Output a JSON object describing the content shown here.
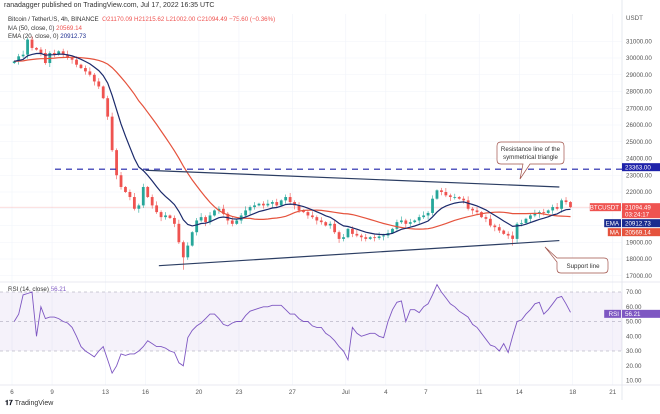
{
  "header": {
    "published": "ranadagger published on TradingView.com, Jul 17, 2022 16:35 UTC"
  },
  "legend": {
    "symbol": "Bitcoin / TetherUS, 4h, BINANCE",
    "open": "O21170.09",
    "high": "H21215.62",
    "low": "L21002.00",
    "close": "C21094.49",
    "change": "−75.60 (−0.36%)",
    "ma_label": "MA (50, close, 0)",
    "ma_value": "20569.14",
    "ema_label": "EMA (20, close, 0)",
    "ema_value": "20912.73",
    "rsi_label": "RSI (14, close)",
    "rsi_value": "56.21"
  },
  "footer": {
    "brand": "TradingView"
  },
  "colors": {
    "up": "#26a69a",
    "down": "#ef5350",
    "ema": "#1b2a6b",
    "ma": "#e5533d",
    "rsi": "#7e57c2",
    "trendline": "#2c3e63",
    "level": "#1e22aa"
  },
  "chart_data": [
    {
      "type": "candlestick",
      "symbol": "BTCUSDT",
      "unit": "USDT",
      "start": "2022-06-06",
      "closes": [
        29800,
        30100,
        30200,
        31100,
        30600,
        30500,
        30300,
        29700,
        30300,
        30200,
        30400,
        30200,
        30000,
        29900,
        29600,
        29400,
        29200,
        29000,
        28600,
        28300,
        27600,
        26500,
        24500,
        23000,
        22300,
        22000,
        21700,
        21000,
        21200,
        22300,
        21700,
        21200,
        20800,
        20500,
        20600,
        20450,
        20100,
        19000,
        18100,
        18800,
        19600,
        20300,
        20500,
        20200,
        20600,
        20900,
        21000,
        20700,
        20300,
        20100,
        20300,
        20600,
        20900,
        21100,
        21200,
        21300,
        21200,
        21300,
        21400,
        21200,
        21500,
        21700,
        21400,
        21200,
        20900,
        20800,
        20600,
        20500,
        20300,
        20200,
        20000,
        20100,
        19600,
        19200,
        19300,
        19800,
        19500,
        19400,
        19300,
        19200,
        19300,
        19250,
        19350,
        19400,
        19550,
        19800,
        20200,
        20300,
        20100,
        20200,
        20300,
        20500,
        20600,
        20750,
        21600,
        22100,
        22000,
        21800,
        21700,
        21700,
        21600,
        21500,
        21000,
        20900,
        20800,
        20500,
        20400,
        20000,
        19900,
        19700,
        19500,
        19400,
        19200,
        20100,
        20150,
        20400,
        20600,
        20700,
        20800,
        20750,
        20900,
        21100,
        21000,
        21500,
        21400,
        21094.49
      ],
      "ylim": [
        16500,
        32000
      ],
      "yticks": [
        "31000.00",
        "30000.00",
        "29000.00",
        "28000.00",
        "27000.00",
        "26000.00",
        "25000.00",
        "24000.00",
        "23000.00",
        "22000.00",
        "19000.00",
        "18000.00",
        "17000.00"
      ],
      "xticks": [
        {
          "label": "6",
          "date": "2022-06-06"
        },
        {
          "label": "9",
          "date": "2022-06-09"
        },
        {
          "label": "13",
          "date": "2022-06-13"
        },
        {
          "label": "16",
          "date": "2022-06-16"
        },
        {
          "label": "20",
          "date": "2022-06-20"
        },
        {
          "label": "23",
          "date": "2022-06-23"
        },
        {
          "label": "27",
          "date": "2022-06-27"
        },
        {
          "label": "Jul",
          "date": "2022-07-01"
        },
        {
          "label": "4",
          "date": "2022-07-04"
        },
        {
          "label": "7",
          "date": "2022-07-07"
        },
        {
          "label": "11",
          "date": "2022-07-11"
        },
        {
          "label": "14",
          "date": "2022-07-14"
        },
        {
          "label": "18",
          "date": "2022-07-18"
        },
        {
          "label": "21",
          "date": "2022-07-21"
        }
      ],
      "indicators": {
        "ema_period": 20,
        "ma_period": 50
      },
      "price_tags": {
        "last": {
          "label": "BTCUSDT",
          "value": "21094.49",
          "countdown": "03:24:17"
        },
        "ema": {
          "label": "EMA",
          "value": "20912.73"
        },
        "ma": {
          "label": "MA",
          "value": "20569.14"
        },
        "level": {
          "value": "23363.00"
        }
      },
      "level_line": 23363,
      "trendlines": {
        "resistance": [
          {
            "date": "2022-06-16",
            "price": 23300
          },
          {
            "date": "2022-07-17",
            "price": 22300
          }
        ],
        "support": [
          {
            "date": "2022-06-17",
            "price": 17600
          },
          {
            "date": "2022-07-17",
            "price": 19100
          }
        ]
      },
      "annotations": {
        "resistance": "Resistance line of the symmetrical triangle",
        "support": "Support line"
      },
      "grid": true
    },
    {
      "type": "line",
      "name": "RSI (14, close)",
      "start": "2022-06-06",
      "values": [
        50,
        55,
        68,
        69,
        70,
        40,
        60,
        52,
        53,
        53,
        52,
        50,
        49,
        46,
        40,
        33,
        30,
        28,
        26,
        30,
        33,
        24,
        15,
        20,
        28,
        27,
        28,
        28,
        30,
        33,
        37,
        35,
        33,
        33,
        32,
        30,
        29,
        22,
        20,
        39,
        44,
        47,
        49,
        52,
        55,
        55,
        52,
        48,
        47,
        49,
        50,
        50,
        54,
        57,
        58,
        59,
        60,
        60,
        61,
        61,
        61,
        58,
        55,
        55,
        52,
        50,
        50,
        47,
        46,
        46,
        42,
        40,
        37,
        33,
        30,
        24,
        46,
        42,
        40,
        41,
        42,
        42,
        40,
        39,
        50,
        58,
        63,
        64,
        50,
        58,
        58,
        56,
        60,
        62,
        68,
        75,
        70,
        66,
        62,
        60,
        57,
        55,
        53,
        48,
        46,
        42,
        38,
        34,
        33,
        30,
        35,
        29,
        40,
        50,
        51,
        55,
        58,
        62,
        63,
        55,
        58,
        62,
        66,
        67,
        62,
        56.21
      ],
      "ylim": [
        5,
        80
      ],
      "bands": [
        70,
        50,
        30
      ],
      "yticks": [
        "70.00",
        "60.00",
        "50.00",
        "40.00",
        "30.00",
        "20.00",
        "10.00"
      ],
      "last_tag": {
        "label": "RSI",
        "value": "56.21"
      }
    }
  ]
}
